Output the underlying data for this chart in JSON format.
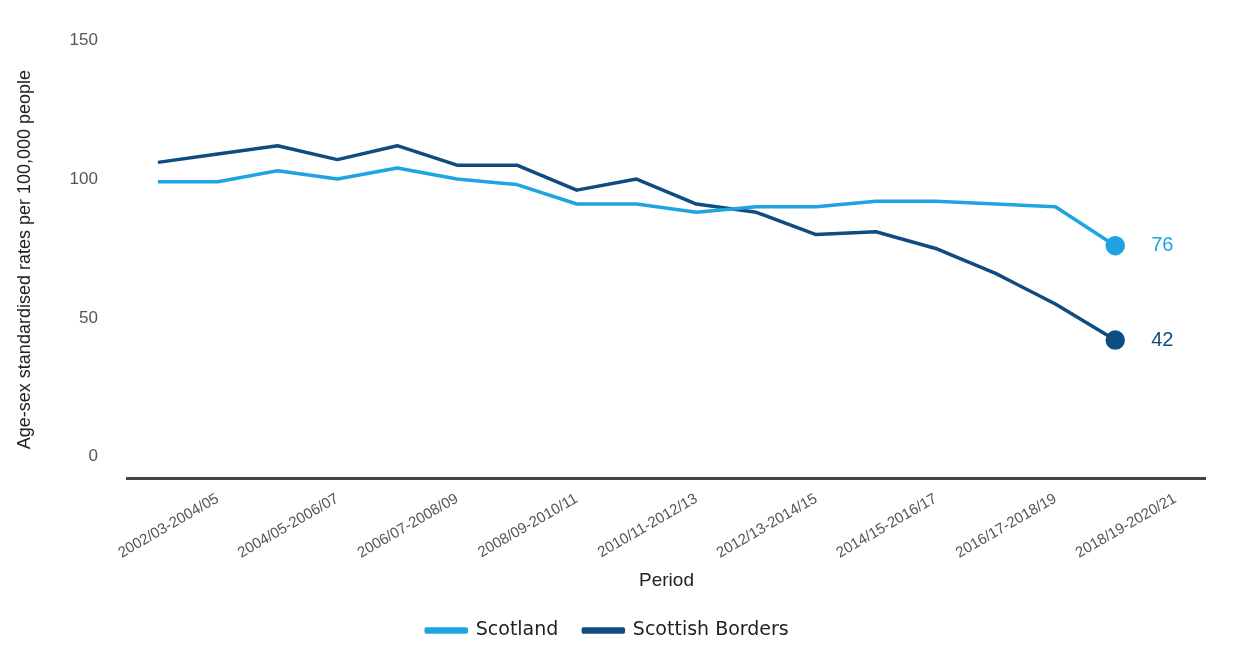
{
  "chart_data": {
    "type": "line",
    "xlabel": "Period",
    "ylabel": "Age-sex standardised rates per 100,000 people",
    "categories": [
      null,
      "2002/03-2004/05",
      null,
      "2004/05-2006/07",
      null,
      "2006/07-2008/09",
      null,
      "2008/09-2010/11",
      null,
      "2010/11-2012/13",
      null,
      "2012/13-2014/15",
      null,
      "2014/15-2016/17",
      null,
      "2016/17-2018/19",
      null,
      "2018/19-2020/21"
    ],
    "series": [
      {
        "name": "Scotland",
        "color": "#1ea4e0",
        "values": [
          99,
          99,
          103,
          100,
          104,
          100,
          98,
          91,
          91,
          88,
          90,
          90,
          92,
          92,
          91,
          90,
          76,
          null
        ],
        "value_labels": [
          null,
          null,
          null,
          null,
          null,
          null,
          null,
          null,
          null,
          null,
          null,
          null,
          null,
          null,
          null,
          null,
          "76",
          null
        ]
      },
      {
        "name": "Scottish Borders",
        "color": "#0f4c81",
        "values": [
          106,
          109,
          112,
          107,
          112,
          105,
          105,
          96,
          100,
          91,
          88,
          80,
          81,
          75,
          66,
          55,
          42,
          null
        ],
        "value_labels": [
          null,
          null,
          null,
          null,
          null,
          null,
          null,
          null,
          null,
          null,
          null,
          null,
          null,
          null,
          null,
          null,
          "42",
          null
        ]
      }
    ],
    "ylim": [
      -8,
      150
    ],
    "yticks": [
      0,
      50,
      100,
      150
    ],
    "grid": false,
    "legend": "bottom"
  }
}
